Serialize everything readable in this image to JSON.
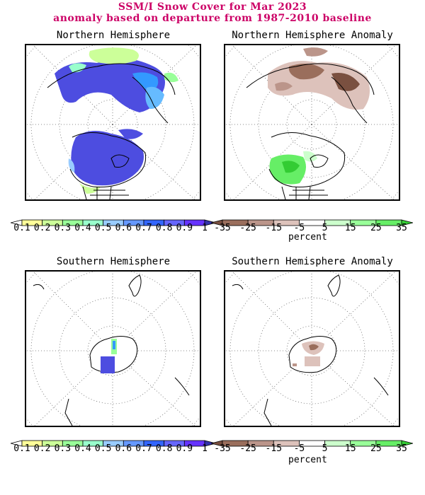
{
  "title_line1": "SSM/I Snow Cover for Mar 2023",
  "title_line2": "anomaly based on departure from 1987-2010 baseline",
  "panels": {
    "nh": "Northern Hemisphere",
    "nh_anom": "Northern Hemisphere Anomaly",
    "sh": "Southern Hemisphere",
    "sh_anom": "Southern Hemisphere Anomaly"
  },
  "cover_scale": {
    "labels": [
      "0.1",
      "0.2",
      "0.3",
      "0.4",
      "0.5",
      "0.6",
      "0.7",
      "0.8",
      "0.9",
      "1"
    ],
    "colors": [
      "#ffff99",
      "#ccff99",
      "#99ff99",
      "#99ffcc",
      "#99ccff",
      "#6699ff",
      "#3366ff",
      "#6666ff",
      "#6633ff"
    ]
  },
  "anomaly_scale": {
    "labels": [
      "-35",
      "-25",
      "-15",
      "-5",
      "5",
      "15",
      "25",
      "35"
    ],
    "colors": [
      "#7a5040",
      "#9a6e5c",
      "#bb958a",
      "#ddc2bb",
      "#ffffff",
      "#ccffcc",
      "#99ff99",
      "#66ee66",
      "#33cc33"
    ],
    "unit": "percent"
  }
}
